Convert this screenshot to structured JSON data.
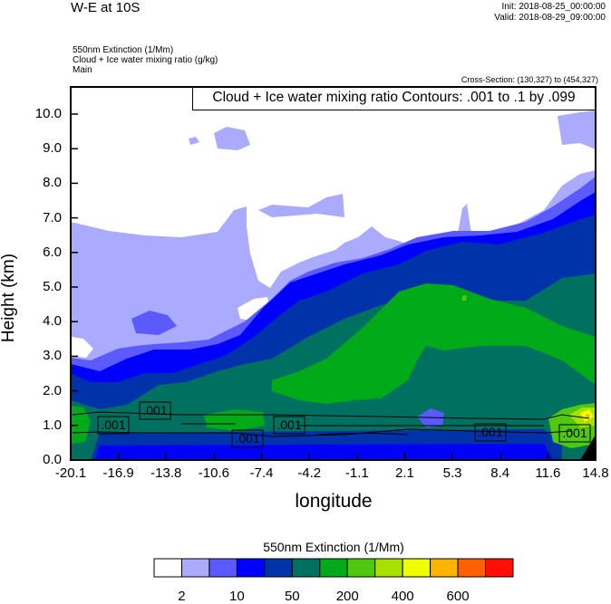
{
  "header": {
    "title": "W-E at 10S",
    "init": "Init: 2018-08-25_00:00:00",
    "valid": "Valid: 2018-08-29_09:00:00",
    "field1": "550nm Extinction   (1/Mm)",
    "field2": "Cloud + Ice water mixing ratio   (g/kg)",
    "field3": "Main",
    "cross_section": "Cross-Section: (130,327) to (454,327)"
  },
  "chart_data": {
    "type": "heatmap",
    "title": "W-E at 10S",
    "xlabel": "longitude",
    "ylabel": "Height (km)",
    "xlim": [
      -20.1,
      14.8
    ],
    "ylim": [
      0.0,
      10.8
    ],
    "x_ticks": [
      "-20.1",
      "-16.9",
      "-13.8",
      "-10.6",
      "-7.4",
      "-4.2",
      "-1.1",
      "2.1",
      "5.3",
      "8.4",
      "11.6",
      "14.8"
    ],
    "y_ticks": [
      "0.0",
      "1.0",
      "2.0",
      "3.0",
      "4.0",
      "5.0",
      "6.0",
      "7.0",
      "8.0",
      "9.0",
      "10.0"
    ],
    "contour_info": "Cloud + Ice water mixing ratio Contours: .001 to .1 by .099",
    "contour_labels": [
      ".001",
      ".001",
      ".001",
      ".001",
      ".001",
      ".001"
    ],
    "colorbar": {
      "title": "550nm Extinction  (1/Mm)",
      "colors": [
        "#ffffff",
        "#aaaaff",
        "#5a5aff",
        "#0000ff",
        "#0033aa",
        "#007060",
        "#00aa18",
        "#50c810",
        "#a8e000",
        "#f0ff00",
        "#ffb400",
        "#ff6000",
        "#ff1000"
      ],
      "labels": [
        "2",
        "10",
        "50",
        "200",
        "400",
        "600"
      ]
    }
  }
}
